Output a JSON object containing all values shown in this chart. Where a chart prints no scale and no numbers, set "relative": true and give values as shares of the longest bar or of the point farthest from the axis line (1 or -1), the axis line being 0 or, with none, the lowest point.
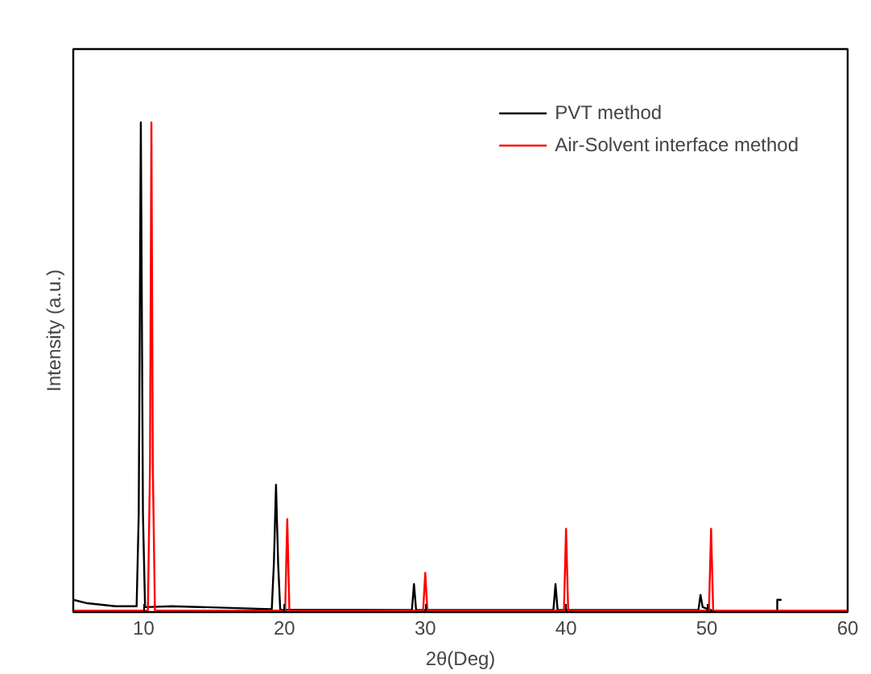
{
  "chart_data": {
    "type": "line",
    "xlabel": "2θ(Deg)",
    "ylabel": "Intensity (a.u.)",
    "relative": true,
    "xlim": [
      5,
      60
    ],
    "xticks": [
      10,
      20,
      30,
      40,
      50,
      60
    ],
    "grid": false,
    "legend": "top right",
    "tick_labels": "x",
    "series": [
      {
        "name": "PVT method",
        "color": "#000000",
        "x": [
          5,
          6,
          8,
          9.5,
          9.65,
          9.8,
          9.95,
          10.1,
          12,
          19.1,
          19.25,
          19.4,
          19.55,
          19.7,
          29.05,
          29.2,
          29.35,
          39.1,
          39.25,
          39.4,
          49.4,
          49.55,
          49.7,
          50.5,
          55,
          55,
          55.3
        ],
        "values": [
          0.025,
          0.018,
          0.012,
          0.012,
          0.2,
          1.0,
          0.2,
          0.01,
          0.012,
          0.006,
          0.1,
          0.26,
          0.1,
          0.005,
          0.004,
          0.057,
          0.004,
          0.004,
          0.057,
          0.004,
          0.004,
          0.035,
          0.01,
          0.002,
          0.002,
          0.025,
          0.025
        ]
      },
      {
        "name": "Air-Solvent interface method",
        "color": "#ff0000",
        "x": [
          5,
          10.3,
          10.45,
          10.55,
          10.65,
          10.8,
          20.05,
          20.2,
          20.35,
          29.85,
          30.0,
          30.15,
          39.85,
          40.0,
          40.15,
          50.15,
          50.3,
          50.45,
          60
        ],
        "values": [
          0.003,
          0.003,
          0.3,
          1.0,
          0.3,
          0.003,
          0.003,
          0.19,
          0.003,
          0.003,
          0.08,
          0.003,
          0.003,
          0.17,
          0.003,
          0.003,
          0.17,
          0.003,
          0.003
        ]
      }
    ]
  }
}
